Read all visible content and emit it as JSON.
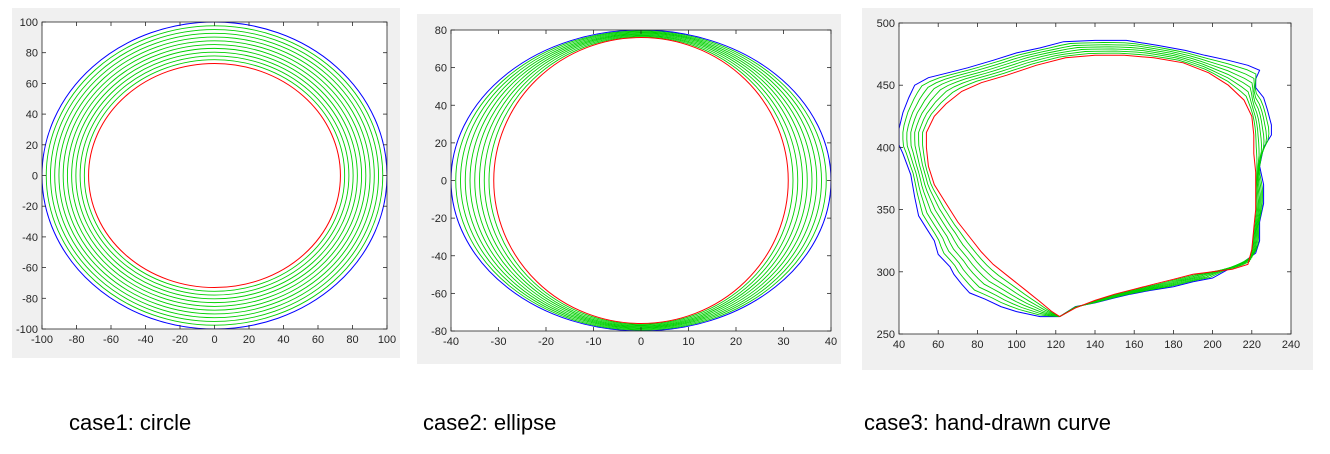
{
  "colors": {
    "outer": "#0000ff",
    "inner": "#ff0000",
    "intermediate": "#00d000",
    "axes": "#262626",
    "panel_bg": "#f0f0f0"
  },
  "captions": [
    "case1: circle",
    "case2: ellipse",
    "case3: hand-drawn curve"
  ],
  "chart_data": [
    {
      "type": "line",
      "caption": "case1: circle",
      "xlim": [
        -100,
        100
      ],
      "ylim": [
        -100,
        100
      ],
      "xticks": [
        -100,
        -80,
        -60,
        -40,
        -20,
        0,
        20,
        40,
        60,
        80,
        100
      ],
      "yticks": [
        -100,
        -80,
        -60,
        -40,
        -20,
        0,
        20,
        40,
        60,
        80,
        100
      ],
      "grid": false,
      "outer": {
        "shape": "ellipse",
        "center": [
          0,
          0
        ],
        "rx": 100,
        "ry": 100,
        "color": "#0000ff"
      },
      "inner": {
        "shape": "ellipse",
        "center": [
          0,
          0
        ],
        "rx": 73,
        "ry": 73,
        "color": "#ff0000"
      },
      "intermediate_count": 10
    },
    {
      "type": "line",
      "caption": "case2: ellipse",
      "xlim": [
        -40,
        40
      ],
      "ylim": [
        -80,
        80
      ],
      "xticks": [
        -40,
        -30,
        -20,
        -10,
        0,
        10,
        20,
        30,
        40
      ],
      "yticks": [
        -80,
        -60,
        -40,
        -20,
        0,
        20,
        40,
        60,
        80
      ],
      "grid": false,
      "outer": {
        "shape": "ellipse",
        "center": [
          0,
          0
        ],
        "rx": 40,
        "ry": 80,
        "color": "#0000ff"
      },
      "inner": {
        "shape": "ellipse",
        "center": [
          0,
          0
        ],
        "rx": 31,
        "ry": 76,
        "color": "#ff0000"
      },
      "intermediate_count": 8
    },
    {
      "type": "line",
      "caption": "case3: hand-drawn curve",
      "xlim": [
        40,
        240
      ],
      "ylim": [
        250,
        500
      ],
      "xticks": [
        40,
        60,
        80,
        100,
        120,
        140,
        160,
        180,
        200,
        220,
        240
      ],
      "yticks": [
        250,
        300,
        350,
        400,
        450,
        500
      ],
      "grid": false,
      "outer": {
        "shape": "polyline",
        "color": "#0000ff",
        "points": [
          [
            122,
            264
          ],
          [
            112,
            264
          ],
          [
            100,
            268
          ],
          [
            92,
            272
          ],
          [
            84,
            278
          ],
          [
            76,
            283
          ],
          [
            72,
            290
          ],
          [
            68,
            298
          ],
          [
            66,
            304
          ],
          [
            60,
            314
          ],
          [
            58,
            325
          ],
          [
            54,
            335
          ],
          [
            50,
            345
          ],
          [
            48,
            360
          ],
          [
            46,
            378
          ],
          [
            42,
            395
          ],
          [
            40,
            402
          ],
          [
            40,
            415
          ],
          [
            42,
            428
          ],
          [
            45,
            440
          ],
          [
            48,
            450
          ],
          [
            55,
            456
          ],
          [
            65,
            460
          ],
          [
            75,
            464
          ],
          [
            88,
            470
          ],
          [
            100,
            476
          ],
          [
            112,
            480
          ],
          [
            124,
            485
          ],
          [
            140,
            486
          ],
          [
            156,
            486
          ],
          [
            172,
            482
          ],
          [
            186,
            478
          ],
          [
            196,
            474
          ],
          [
            208,
            470
          ],
          [
            218,
            466
          ],
          [
            224,
            462
          ],
          [
            222,
            455
          ],
          [
            222,
            448
          ],
          [
            226,
            440
          ],
          [
            228,
            430
          ],
          [
            230,
            418
          ],
          [
            230,
            410
          ],
          [
            226,
            400
          ],
          [
            224,
            385
          ],
          [
            226,
            370
          ],
          [
            226,
            355
          ],
          [
            224,
            340
          ],
          [
            224,
            325
          ],
          [
            222,
            315
          ],
          [
            216,
            308
          ],
          [
            208,
            302
          ],
          [
            200,
            295
          ],
          [
            190,
            292
          ],
          [
            180,
            288
          ],
          [
            168,
            285
          ],
          [
            158,
            282
          ],
          [
            150,
            279
          ],
          [
            140,
            275
          ],
          [
            130,
            272
          ],
          [
            122,
            264
          ]
        ]
      },
      "inner": {
        "shape": "polyline",
        "color": "#ff0000",
        "points": [
          [
            122,
            264
          ],
          [
            118,
            268
          ],
          [
            112,
            276
          ],
          [
            104,
            286
          ],
          [
            96,
            296
          ],
          [
            88,
            306
          ],
          [
            82,
            316
          ],
          [
            76,
            328
          ],
          [
            70,
            340
          ],
          [
            64,
            355
          ],
          [
            58,
            370
          ],
          [
            55,
            385
          ],
          [
            54,
            400
          ],
          [
            54,
            412
          ],
          [
            58,
            425
          ],
          [
            64,
            435
          ],
          [
            72,
            445
          ],
          [
            82,
            452
          ],
          [
            95,
            458
          ],
          [
            110,
            466
          ],
          [
            125,
            472
          ],
          [
            140,
            474
          ],
          [
            155,
            474
          ],
          [
            170,
            472
          ],
          [
            185,
            468
          ],
          [
            198,
            460
          ],
          [
            208,
            450
          ],
          [
            216,
            438
          ],
          [
            220,
            425
          ],
          [
            221,
            410
          ],
          [
            221,
            395
          ],
          [
            222,
            380
          ],
          [
            222,
            365
          ],
          [
            222,
            350
          ],
          [
            221,
            335
          ],
          [
            220,
            318
          ],
          [
            218,
            306
          ],
          [
            210,
            302
          ],
          [
            200,
            300
          ],
          [
            190,
            298
          ],
          [
            180,
            294
          ],
          [
            170,
            290
          ],
          [
            160,
            286
          ],
          [
            150,
            282
          ],
          [
            140,
            277
          ],
          [
            130,
            271
          ],
          [
            122,
            264
          ]
        ]
      },
      "intermediate_count": 6
    }
  ]
}
